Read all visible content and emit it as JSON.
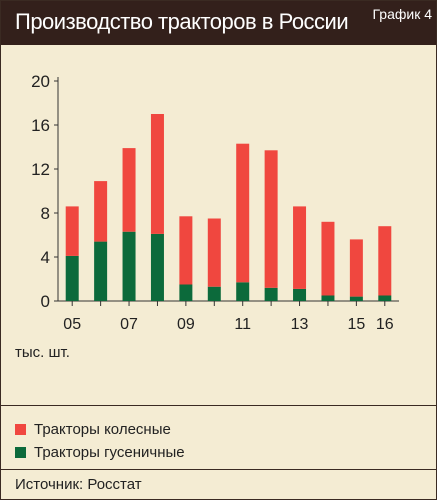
{
  "header": {
    "title": "Производство тракторов в России",
    "badge": "График 4"
  },
  "unit_label": "тыс. шт.",
  "legend": [
    {
      "label": "Тракторы колесные",
      "color": "#f0473f"
    },
    {
      "label": "Тракторы гусеничные",
      "color": "#0c6a3b"
    }
  ],
  "source": "Источник: Росстат",
  "chart_data": {
    "type": "bar",
    "stacked": true,
    "categories": [
      "05",
      "06",
      "07",
      "08",
      "09",
      "10",
      "11",
      "12",
      "13",
      "14",
      "15",
      "16"
    ],
    "x_tick_labels": [
      "05",
      "",
      "07",
      "",
      "09",
      "",
      "11",
      "",
      "13",
      "",
      "15",
      "16"
    ],
    "series": [
      {
        "name": "Тракторы гусеничные",
        "color": "#0c6a3b",
        "values": [
          4.1,
          5.4,
          6.3,
          6.1,
          1.5,
          1.3,
          1.7,
          1.2,
          1.1,
          0.5,
          0.4,
          0.5
        ]
      },
      {
        "name": "Тракторы колесные",
        "color": "#f0473f",
        "values": [
          4.5,
          5.5,
          7.6,
          10.9,
          6.2,
          6.2,
          12.6,
          12.5,
          7.5,
          6.7,
          5.2,
          6.3
        ]
      }
    ],
    "ylim": [
      0,
      20
    ],
    "yticks": [
      0,
      4,
      8,
      12,
      16,
      20
    ],
    "grid": false
  }
}
